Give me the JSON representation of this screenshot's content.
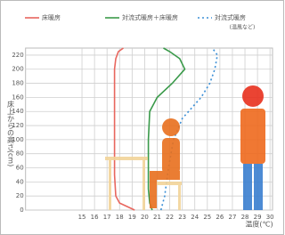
{
  "chart_data": {
    "type": "line",
    "x_label": "温度(℃)",
    "y_label": "床上からの高さ(cm)",
    "legend_note": "(温風など)",
    "xlim": [
      10.5,
      30.2
    ],
    "xticks": [
      15,
      16,
      17,
      18,
      19,
      20,
      21,
      22,
      23,
      24,
      25,
      26,
      27,
      28,
      29,
      30
    ],
    "ylim": [
      0,
      230
    ],
    "yticks": [
      0,
      20,
      40,
      60,
      80,
      100,
      120,
      140,
      160,
      180,
      200,
      220
    ],
    "grid": true,
    "series": [
      {
        "name": "床暖房",
        "color": "#e8665e",
        "dash": false,
        "x": [
          19.2,
          18.6,
          18.0,
          17.7,
          17.6,
          17.6,
          17.6,
          17.6,
          17.7,
          17.9,
          18.3
        ],
        "values": [
          0,
          5,
          10,
          20,
          50,
          100,
          150,
          200,
          215,
          225,
          230
        ]
      },
      {
        "name": "対流式暖房＋床暖房",
        "color": "#3a9a4a",
        "dash": false,
        "x": [
          20.6,
          20.4,
          20.3,
          20.3,
          20.3,
          20.4,
          21.0,
          22.2,
          23.2,
          22.8,
          22.0,
          21.5
        ],
        "values": [
          0,
          10,
          30,
          60,
          100,
          140,
          160,
          180,
          200,
          215,
          225,
          230
        ]
      },
      {
        "name": "対流式暖房",
        "color": "#3b8fd6",
        "dash": true,
        "x": [
          21.3,
          21.6,
          21.9,
          22.3,
          23.0,
          24.5,
          25.2,
          25.6,
          25.8,
          25.4
        ],
        "values": [
          0,
          20,
          60,
          100,
          130,
          160,
          180,
          200,
          220,
          230
        ]
      }
    ]
  }
}
